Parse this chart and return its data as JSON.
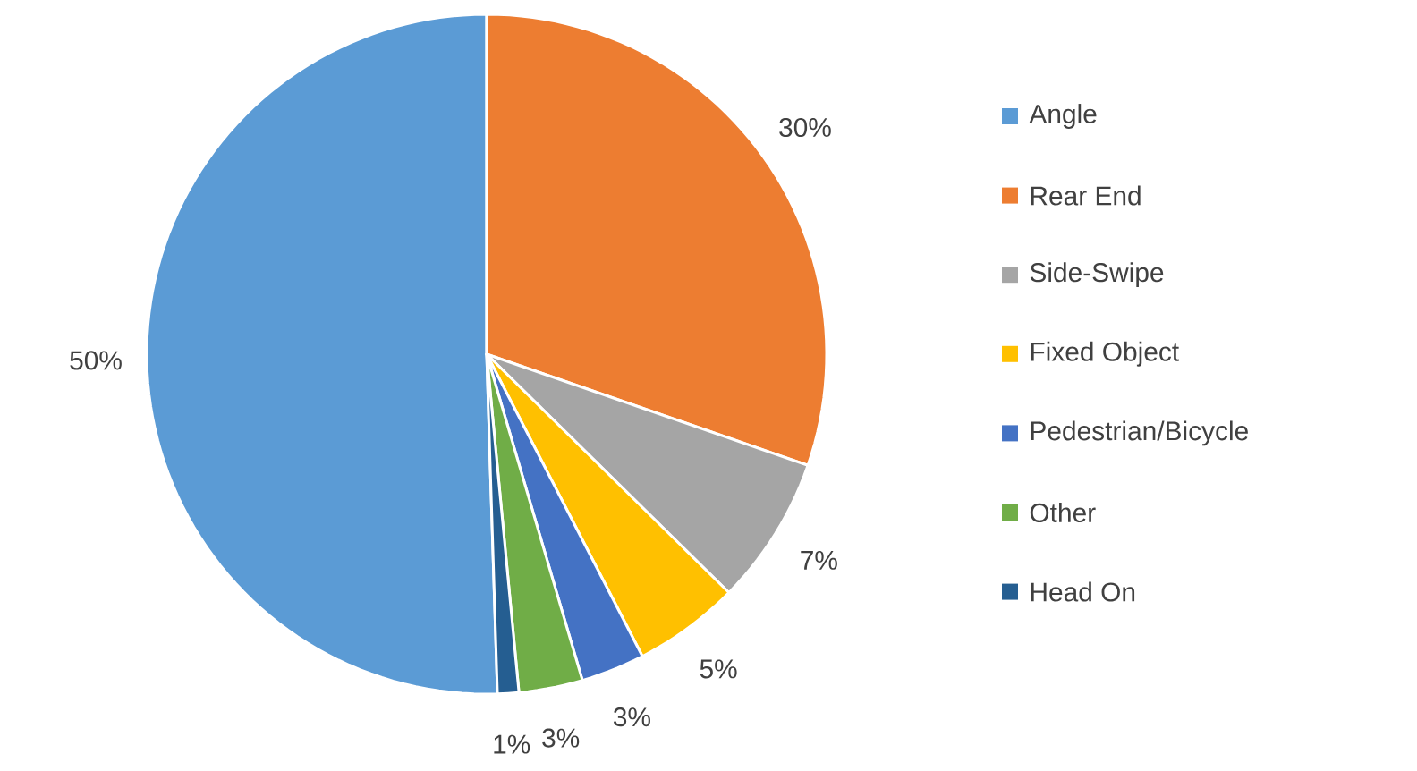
{
  "chart_data": {
    "type": "pie",
    "categories": [
      "Angle",
      "Rear End",
      "Side-Swipe",
      "Fixed Object",
      "Pedestrian/Bicycle",
      "Other",
      "Head On"
    ],
    "values": [
      50,
      30,
      7,
      5,
      3,
      3,
      1
    ],
    "colors": [
      "#5b9bd5",
      "#ed7d31",
      "#a5a5a5",
      "#ffc000",
      "#4472c4",
      "#70ad47",
      "#255e91"
    ],
    "value_labels": [
      "50%",
      "30%",
      "7%",
      "5%",
      "3%",
      "3%",
      "1%"
    ],
    "legend": "right"
  }
}
